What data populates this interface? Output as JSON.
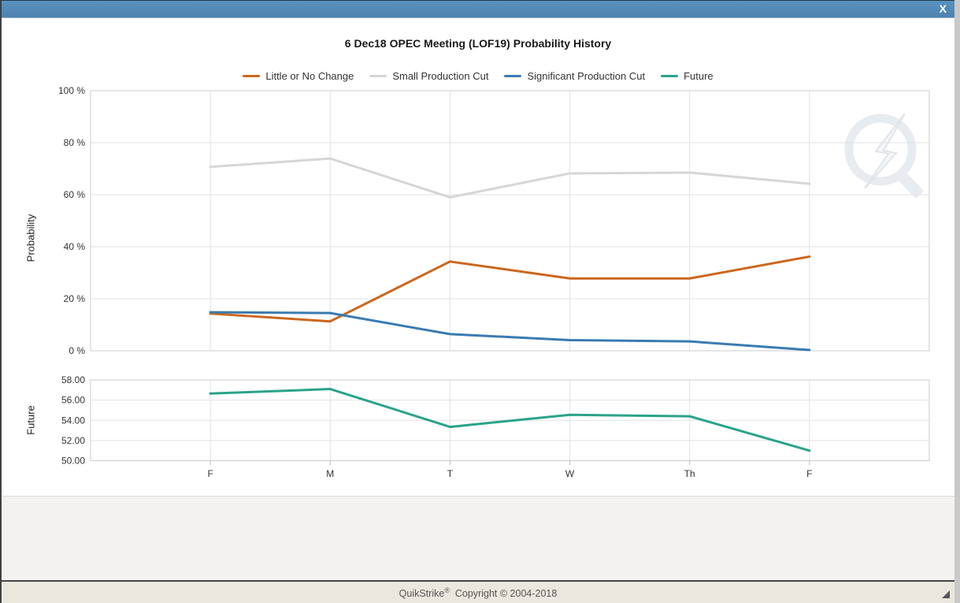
{
  "window": {
    "close_label": "X"
  },
  "title": "6 Dec18 OPEC Meeting (LOF19) Probability History",
  "legend": [
    {
      "label": "Little or No Change",
      "color": "#ca671e"
    },
    {
      "label": "Small Production Cut",
      "color": "#d6d6d6"
    },
    {
      "label": "Significant Production Cut",
      "color": "#3a7bb1"
    },
    {
      "label": "Future",
      "color": "#2aa38b"
    }
  ],
  "footer": {
    "brand": "QuikStrike",
    "reg_mark": "®",
    "copyright": "Copyright © 2004-2018"
  },
  "watermark": "quikstrike-logo",
  "chart_data": [
    {
      "type": "line",
      "title": "6 Dec18 OPEC Meeting (LOF19) Probability History",
      "xlabel": "",
      "ylabel": "Probability",
      "x": [
        "F",
        "M",
        "T",
        "W",
        "Th",
        "F"
      ],
      "y_ticks": [
        "100 %",
        "80 %",
        "60 %",
        "40 %",
        "20 %",
        "0 %"
      ],
      "ylim": [
        0,
        100
      ],
      "grid": true,
      "legend_position": "top",
      "series": [
        {
          "name": "Little or No Change",
          "color": "#ca671e",
          "values": [
            14.3,
            11.3,
            34.3,
            27.8,
            27.8,
            36.2
          ]
        },
        {
          "name": "Small Production Cut",
          "color": "#d6d6d6",
          "values": [
            70.7,
            73.9,
            59.0,
            68.2,
            68.5,
            64.2
          ]
        },
        {
          "name": "Significant Production Cut",
          "color": "#3a7bb1",
          "values": [
            14.8,
            14.5,
            6.4,
            4.1,
            3.6,
            0.3
          ]
        }
      ]
    },
    {
      "type": "line",
      "xlabel": "",
      "ylabel": "Future",
      "x": [
        "F",
        "M",
        "T",
        "W",
        "Th",
        "F"
      ],
      "y_ticks": [
        "58.00",
        "56.00",
        "54.00",
        "52.00",
        "50.00"
      ],
      "ylim": [
        50,
        58
      ],
      "grid": true,
      "series": [
        {
          "name": "Future",
          "color": "#2aa38b",
          "values": [
            56.65,
            57.1,
            53.35,
            54.55,
            54.4,
            51.0
          ]
        }
      ]
    }
  ]
}
